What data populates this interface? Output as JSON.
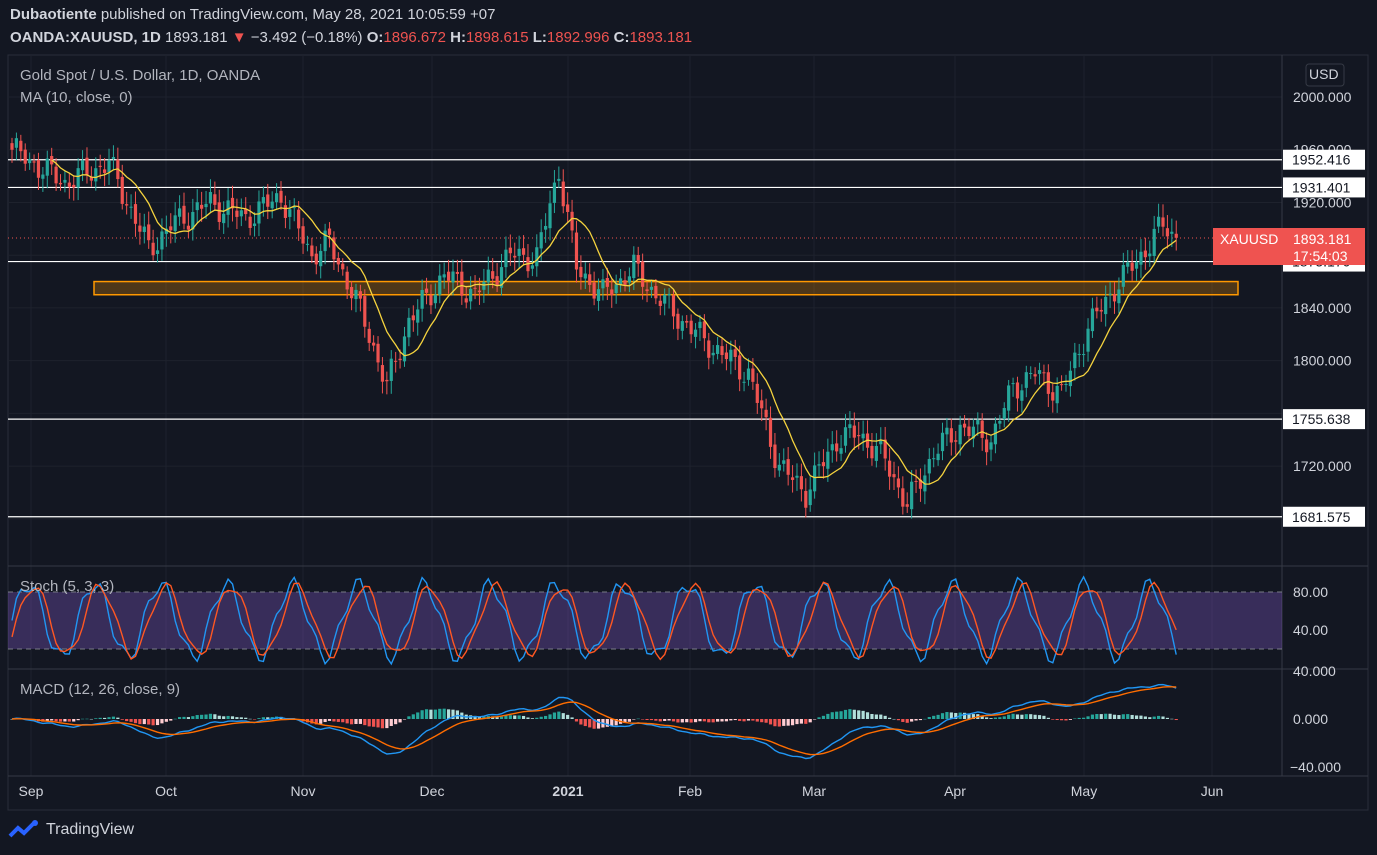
{
  "header": {
    "publisher": "Dubaotiente",
    "published_text": "published on TradingView.com, May 28, 2021 10:05:59 +07",
    "symbol": "OANDA:XAUUSD, 1D",
    "last": "1893.181",
    "change": "−3.492 (−0.18%)",
    "o_label": "O:",
    "o": "1896.672",
    "h_label": "H:",
    "h": "1898.615",
    "l_label": "L:",
    "l": "1892.996",
    "c_label": "C:",
    "c": "1893.181"
  },
  "legend": {
    "title": "Gold Spot / U.S. Dollar, 1D, OANDA",
    "ma": "MA (10, close, 0)",
    "stoch": "Stoch (5, 3, 3)",
    "macd": "MACD (12, 26, close, 9)"
  },
  "currency": "USD",
  "price_ticks": [
    "2000.000",
    "1960.000",
    "1920.000",
    "1840.000",
    "1800.000",
    "1720.000"
  ],
  "levels": [
    "1952.416",
    "1931.401",
    "1875.170",
    "1755.638",
    "1681.575"
  ],
  "last_price_label": {
    "symbol": "XAUUSD",
    "price": "1893.181",
    "countdown": "17:54:03"
  },
  "stoch_ticks": [
    "80.00",
    "40.00"
  ],
  "macd_ticks": [
    "40.000",
    "0.000",
    "−40.000"
  ],
  "x_ticks": [
    "Sep",
    "Oct",
    "Nov",
    "Dec",
    "2021",
    "Feb",
    "Mar",
    "Apr",
    "May",
    "Jun"
  ],
  "footer": {
    "brand": "TradingView"
  },
  "colors": {
    "up": "#26a69a",
    "down": "#ef5350",
    "ma": "#f5d33e",
    "stoch_k": "#2196f3",
    "stoch_d": "#ff5722",
    "zone": "#ff9800"
  },
  "chart_data": {
    "type": "candlestick",
    "title": "Gold Spot / U.S. Dollar, 1D, OANDA",
    "price_range": [
      1660,
      2030
    ],
    "zone": [
      1850,
      1860
    ],
    "x_ticks": [
      "Sep",
      "Oct",
      "Nov",
      "Dec",
      "2021",
      "Feb",
      "Mar",
      "Apr",
      "May",
      "Jun"
    ],
    "close_path": [
      [
        0,
        1960
      ],
      [
        12,
        1935
      ],
      [
        22,
        1950
      ],
      [
        31,
        1885
      ],
      [
        37,
        1905
      ],
      [
        45,
        1920
      ],
      [
        53,
        1908
      ],
      [
        61,
        1925
      ],
      [
        68,
        1880
      ],
      [
        72,
        1890
      ],
      [
        80,
        1830
      ],
      [
        85,
        1780
      ],
      [
        90,
        1830
      ],
      [
        98,
        1865
      ],
      [
        105,
        1850
      ],
      [
        113,
        1880
      ],
      [
        119,
        1878
      ],
      [
        124,
        1945
      ],
      [
        128,
        1870
      ],
      [
        134,
        1850
      ],
      [
        141,
        1870
      ],
      [
        146,
        1850
      ],
      [
        152,
        1830
      ],
      [
        159,
        1810
      ],
      [
        167,
        1790
      ],
      [
        174,
        1720
      ],
      [
        180,
        1700
      ],
      [
        187,
        1740
      ],
      [
        192,
        1745
      ],
      [
        198,
        1725
      ],
      [
        203,
        1690
      ],
      [
        209,
        1730
      ],
      [
        215,
        1750
      ],
      [
        222,
        1740
      ],
      [
        227,
        1780
      ],
      [
        232,
        1790
      ],
      [
        238,
        1775
      ],
      [
        244,
        1825
      ],
      [
        250,
        1855
      ],
      [
        256,
        1880
      ],
      [
        261,
        1903
      ],
      [
        264,
        1893
      ]
    ],
    "ma_period": 10,
    "stoch_range": [
      0,
      100
    ],
    "stoch_levels": [
      80,
      20
    ],
    "macd_range": [
      -45,
      45
    ]
  }
}
